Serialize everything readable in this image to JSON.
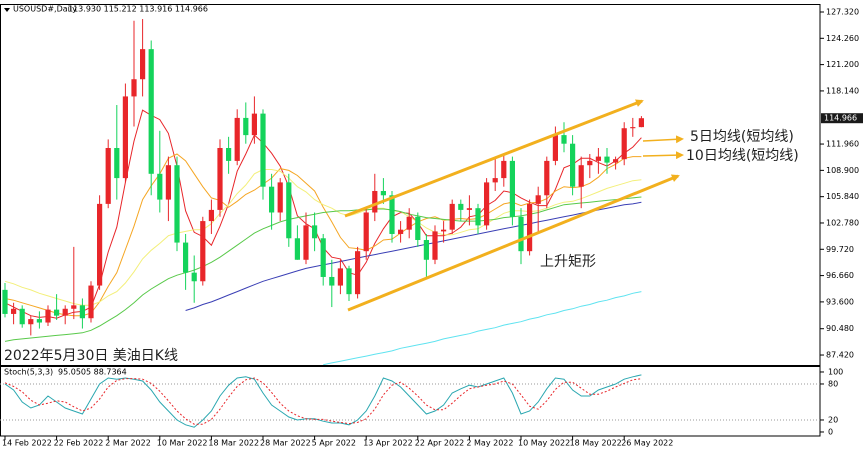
{
  "chart_data": [
    {
      "type": "candlestick",
      "symbol": "USOUSD#,Daily",
      "header_values": "113.930 115.212 113.916 114.966",
      "caption": "2022年5月30日 美油日K线",
      "annotations": [
        "5日均线(短均线)",
        "10日均线(短均线)",
        "上升矩形"
      ],
      "up_color": "#e8262a",
      "down_color": "#14d35b",
      "categories": [
        "14 Feb 2022",
        null,
        null,
        null,
        null,
        null,
        "22 Feb 2022",
        null,
        null,
        null,
        null,
        null,
        "2 Mar 2022",
        null,
        null,
        null,
        null,
        null,
        "10 Mar 2022",
        null,
        null,
        null,
        null,
        null,
        "18 Mar 2022",
        null,
        null,
        null,
        null,
        null,
        "28 Mar 2022",
        null,
        null,
        null,
        null,
        null,
        "5 Apr 2022",
        null,
        null,
        null,
        null,
        null,
        "13 Apr 2022",
        null,
        null,
        null,
        null,
        null,
        "22 Apr 2022",
        null,
        null,
        null,
        null,
        null,
        "2 May 2022",
        null,
        null,
        null,
        null,
        null,
        "10 May 2022",
        null,
        null,
        null,
        null,
        null,
        "18 May 2022",
        null,
        null,
        null,
        null,
        null,
        "26 May 2022",
        null,
        null
      ],
      "open": [
        95.0,
        92.2,
        92.8,
        91.0,
        91.6,
        91.2,
        92.7,
        92.0,
        92.8,
        93.2,
        91.7,
        95.5,
        105.0,
        111.5,
        108.0,
        117.5,
        119.5,
        123.0,
        108.5,
        105.5,
        109.5,
        100.5,
        97.0,
        96.0,
        103.0,
        104.3,
        111.5,
        110.0,
        115.0,
        113.0,
        115.5,
        107.0,
        104.0,
        107.5,
        101.0,
        98.5,
        102.5,
        101.0,
        96.5,
        95.5,
        97.5,
        94.5,
        99.5,
        104.0,
        106.5,
        106.0,
        101.5,
        102.0,
        103.5,
        100.8,
        98.5,
        101.8,
        102.0,
        105.0,
        104.3,
        104.5,
        102.5,
        107.5,
        108.0,
        110.0,
        103.5,
        99.5,
        105.0,
        106.0,
        110.0,
        113.0,
        112.0,
        107.0,
        109.5,
        110.0,
        110.5,
        109.8,
        110.2,
        113.8,
        113.93
      ],
      "high": [
        95.8,
        93.5,
        93.2,
        92.0,
        92.5,
        93.2,
        94.5,
        93.2,
        100.0,
        94.0,
        96.0,
        106.0,
        112.5,
        116.5,
        119.0,
        126.3,
        126.5,
        124.0,
        113.5,
        110.5,
        110.5,
        101.5,
        99.0,
        103.5,
        105.5,
        112.5,
        112.8,
        116.0,
        116.8,
        117.5,
        116.0,
        108.5,
        108.0,
        108.5,
        102.5,
        104.0,
        104.0,
        101.5,
        98.5,
        98.5,
        97.8,
        100.0,
        104.5,
        108.5,
        108.0,
        106.5,
        103.0,
        104.5,
        104.0,
        101.5,
        102.5,
        103.0,
        105.5,
        105.5,
        106.0,
        105.0,
        108.0,
        110.5,
        110.8,
        110.5,
        104.5,
        105.5,
        107.0,
        110.5,
        114.0,
        114.5,
        113.0,
        110.5,
        110.8,
        111.5,
        111.5,
        110.5,
        114.5,
        115.0,
        115.212
      ],
      "low": [
        91.8,
        91.0,
        90.6,
        89.7,
        90.5,
        90.8,
        91.5,
        91.0,
        91.6,
        90.5,
        91.2,
        95.0,
        104.5,
        105.5,
        107.5,
        114.0,
        117.5,
        106.0,
        104.0,
        103.0,
        99.5,
        95.0,
        93.5,
        95.5,
        101.5,
        103.5,
        108.5,
        109.5,
        112.0,
        112.0,
        105.5,
        102.0,
        103.0,
        100.0,
        98.5,
        98.0,
        99.5,
        95.5,
        93.0,
        94.5,
        93.7,
        94.0,
        98.5,
        103.0,
        105.0,
        100.5,
        100.5,
        101.0,
        100.0,
        96.5,
        98.0,
        100.5,
        101.5,
        103.0,
        102.5,
        101.5,
        102.0,
        106.5,
        107.0,
        102.5,
        98.0,
        99.0,
        101.5,
        104.5,
        109.5,
        111.0,
        106.0,
        104.5,
        108.0,
        108.5,
        108.5,
        109.0,
        109.5,
        112.8,
        113.916
      ],
      "close": [
        92.2,
        92.8,
        91.0,
        91.6,
        91.2,
        92.7,
        92.0,
        92.8,
        93.2,
        91.7,
        95.5,
        105.0,
        111.5,
        108.0,
        117.5,
        119.5,
        123.0,
        108.5,
        105.5,
        109.5,
        100.5,
        97.0,
        96.0,
        103.0,
        104.3,
        111.5,
        110.0,
        115.0,
        113.0,
        115.5,
        107.0,
        104.0,
        107.5,
        101.0,
        98.5,
        102.5,
        101.0,
        96.5,
        95.5,
        97.5,
        94.5,
        99.5,
        104.0,
        106.5,
        106.0,
        101.5,
        102.0,
        103.5,
        100.8,
        98.5,
        101.8,
        102.0,
        105.0,
        104.3,
        104.5,
        102.5,
        107.5,
        108.0,
        110.0,
        103.5,
        99.5,
        105.0,
        106.0,
        110.0,
        113.0,
        112.0,
        107.0,
        109.5,
        110.0,
        110.5,
        109.8,
        110.2,
        113.8,
        113.93,
        114.966
      ],
      "overlays": [
        {
          "color": "#e8262a",
          "values": [
            93.5,
            93,
            92.5,
            92,
            91.8,
            91.9,
            91.7,
            92.1,
            92.4,
            92.5,
            93.0,
            95.6,
            99.4,
            102.3,
            107.5,
            112.3,
            115.9,
            115.3,
            114.8,
            113.2,
            109.4,
            104.2,
            101.7,
            101.2,
            100.2,
            102.4,
            105.0,
            108.8,
            110.8,
            113.0,
            112.1,
            110.9,
            109.4,
            107.0,
            103.6,
            102.7,
            102.1,
            99.9,
            98.8,
            98.6,
            97.0,
            96.7,
            98.2,
            100.4,
            102.1,
            103.5,
            104.0,
            103.9,
            102.8,
            101.3,
            101.3,
            101.3,
            101.6,
            102.3,
            103.5,
            103.7,
            104.8,
            105.4,
            106.5,
            106.3,
            105.7,
            105.2,
            104.8,
            104.8,
            106.7,
            109.2,
            109.6,
            110.3,
            110.3,
            109.8,
            109.4,
            110.0,
            110.9,
            111.6,
            112.7
          ]
        },
        {
          "color": "#f5a623",
          "values": [
            94,
            93.8,
            93.5,
            93.2,
            92.9,
            92.6,
            92.3,
            92.1,
            92.0,
            92.0,
            92.3,
            93.6,
            95.4,
            97.0,
            99.7,
            102.4,
            105.5,
            107.1,
            108.5,
            110.3,
            110.8,
            110.0,
            108.5,
            107.0,
            105.7,
            105.4,
            104.6,
            105.3,
            106.1,
            106.6,
            107.3,
            108.0,
            109.1,
            108.9,
            108.3,
            107.4,
            106.5,
            104.6,
            102.9,
            101.1,
            99.9,
            99.8,
            99.6,
            100.1,
            100.8,
            100.9,
            101.6,
            102.3,
            102.9,
            103.3,
            103.5,
            103.1,
            103.2,
            103.3,
            103.2,
            103.3,
            103.8,
            104.4,
            105.0,
            105.2,
            104.8,
            105.1,
            105.2,
            105.6,
            106.5,
            107.0,
            106.9,
            107.0,
            107.4,
            108.1,
            109.1,
            109.6,
            110.3,
            110.5,
            110.5
          ]
        },
        {
          "color": "#f3ef7a",
          "values": [
            96,
            95.7,
            95.3,
            95,
            94.6,
            94.3,
            94,
            93.7,
            93.4,
            93.2,
            93.2,
            93.6,
            94.3,
            94.8,
            95.8,
            97.1,
            98.6,
            99.6,
            100.4,
            101.3,
            101.6,
            101.8,
            102.0,
            102.0,
            102.7,
            103.9,
            104.9,
            106.2,
            107.2,
            108.5,
            109.0,
            109.0,
            108.8,
            108.0,
            107.0,
            106.4,
            105.5,
            104.9,
            104.5,
            103.9,
            103.6,
            103.9,
            104.3,
            104.5,
            104.5,
            104.2,
            104.1,
            103.5,
            102.9,
            102.2,
            101.7,
            101.4,
            101.4,
            101.7,
            102.0,
            102.1,
            102.7,
            103.3,
            103.9,
            104.2,
            104.2,
            104.1,
            104.2,
            104.5,
            104.9,
            105.2,
            105.3,
            105.6,
            106.0,
            106.4,
            106.8,
            107.1,
            107.4,
            107.7,
            107.8
          ]
        },
        {
          "color": "#59c94a",
          "values": [
            89.0,
            89.2,
            89.3,
            89.4,
            89.5,
            89.6,
            89.7,
            89.8,
            89.9,
            90.0,
            90.3,
            90.8,
            91.4,
            92.0,
            92.7,
            93.5,
            94.4,
            95.1,
            95.7,
            96.3,
            96.7,
            97.0,
            97.3,
            97.7,
            98.2,
            98.8,
            99.5,
            100.2,
            100.9,
            101.6,
            102.1,
            102.5,
            102.9,
            103.2,
            103.4,
            103.6,
            103.8,
            104.0,
            104.1,
            104.2,
            104.2,
            104.3,
            104.3,
            104.4,
            104.4,
            104.3,
            104.1,
            103.8,
            103.6,
            103.4,
            103.3,
            103.2,
            103.1,
            103.0,
            103.0,
            103.0,
            103.1,
            103.2,
            103.4,
            103.5,
            103.6,
            103.8,
            104.0,
            104.3,
            104.6,
            104.9,
            105.0,
            105.1,
            105.2,
            105.3,
            105.4,
            105.5,
            105.6,
            105.7,
            105.8
          ]
        },
        {
          "color": "#3a3fb5",
          "values": [
            null,
            null,
            null,
            null,
            null,
            null,
            null,
            null,
            null,
            null,
            null,
            null,
            null,
            null,
            null,
            null,
            null,
            null,
            null,
            null,
            null,
            92.6,
            92.9,
            93.3,
            93.6,
            94.0,
            94.4,
            94.8,
            95.2,
            95.6,
            96.0,
            96.3,
            96.6,
            96.9,
            97.2,
            97.5,
            97.7,
            97.9,
            98.1,
            98.3,
            98.5,
            98.7,
            98.9,
            99.1,
            99.3,
            99.5,
            99.7,
            99.9,
            100.1,
            100.3,
            100.5,
            100.7,
            100.9,
            101.1,
            101.3,
            101.5,
            101.7,
            101.9,
            102.1,
            102.3,
            102.5,
            102.7,
            102.9,
            103.1,
            103.3,
            103.5,
            103.7,
            103.9,
            104.1,
            104.3,
            104.5,
            104.7,
            104.9,
            105.0,
            105.2
          ]
        },
        {
          "color": "#5fe3f0",
          "values": [
            null,
            null,
            null,
            null,
            null,
            null,
            null,
            null,
            null,
            null,
            null,
            null,
            null,
            null,
            null,
            null,
            null,
            null,
            null,
            null,
            null,
            null,
            null,
            null,
            null,
            null,
            null,
            null,
            null,
            null,
            null,
            null,
            null,
            null,
            null,
            null,
            null,
            86.3,
            86.5,
            86.7,
            86.9,
            87.1,
            87.3,
            87.5,
            87.7,
            87.9,
            88.2,
            88.4,
            88.6,
            88.8,
            89.0,
            89.3,
            89.5,
            89.7,
            89.9,
            90.2,
            90.4,
            90.6,
            90.9,
            91.1,
            91.3,
            91.6,
            91.8,
            92.1,
            92.3,
            92.6,
            92.8,
            93.1,
            93.3,
            93.6,
            93.8,
            94.1,
            94.3,
            94.6,
            94.8
          ]
        }
      ],
      "last_price": {
        "value": 114.966,
        "label": "114.966"
      },
      "ylim": [
        86.26,
        128.25
      ],
      "yticks": [
        {
          "value": 127.32,
          "label": "127.320"
        },
        {
          "value": 124.26,
          "label": "124.260"
        },
        {
          "value": 121.2,
          "label": "121.200"
        },
        {
          "value": 118.14,
          "label": "118.140"
        },
        {
          "value": 111.96,
          "label": "111.960"
        },
        {
          "value": 108.9,
          "label": "108.900"
        },
        {
          "value": 105.84,
          "label": "105.840"
        },
        {
          "value": 102.78,
          "label": "102.780"
        },
        {
          "value": 99.72,
          "label": "99.720"
        },
        {
          "value": 96.66,
          "label": "96.660"
        },
        {
          "value": 93.6,
          "label": "93.600"
        },
        {
          "value": 90.48,
          "label": "90.480"
        },
        {
          "value": 87.42,
          "label": "87.420"
        }
      ]
    },
    {
      "type": "line",
      "title": "Stoch(5,3,3)",
      "header_values": "95.0505 88.7364",
      "series": [
        {
          "color": "#2aa7b0",
          "dashed": false,
          "values": [
            80,
            70,
            50,
            40,
            45,
            60,
            50,
            40,
            35,
            30,
            55,
            80,
            90,
            88,
            90,
            88,
            85,
            70,
            50,
            35,
            20,
            12,
            8,
            20,
            35,
            60,
            78,
            90,
            92,
            88,
            65,
            45,
            35,
            25,
            20,
            22,
            22,
            18,
            15,
            15,
            12,
            20,
            35,
            60,
            90,
            85,
            75,
            60,
            45,
            30,
            35,
            45,
            65,
            72,
            78,
            75,
            80,
            85,
            90,
            65,
            30,
            35,
            50,
            72,
            90,
            88,
            70,
            60,
            60,
            70,
            75,
            80,
            88,
            92,
            95.05
          ]
        },
        {
          "color": "#e8262a",
          "dashed": true,
          "values": [
            82,
            76,
            67,
            53,
            45,
            48,
            52,
            50,
            42,
            35,
            40,
            55,
            75,
            86,
            89,
            89,
            88,
            81,
            68,
            52,
            35,
            22,
            13,
            13,
            21,
            38,
            58,
            76,
            87,
            90,
            82,
            66,
            48,
            35,
            27,
            22,
            21,
            21,
            18,
            16,
            14,
            16,
            22,
            38,
            62,
            78,
            83,
            73,
            60,
            45,
            37,
            37,
            48,
            61,
            72,
            75,
            78,
            80,
            85,
            80,
            62,
            43,
            38,
            52,
            71,
            83,
            83,
            73,
            63,
            63,
            68,
            75,
            81,
            87,
            88.74
          ]
        }
      ],
      "levels": [
        20,
        80
      ],
      "ylim": [
        -6.7,
        108.3
      ],
      "yticks": [
        100,
        80,
        20,
        0
      ]
    }
  ]
}
